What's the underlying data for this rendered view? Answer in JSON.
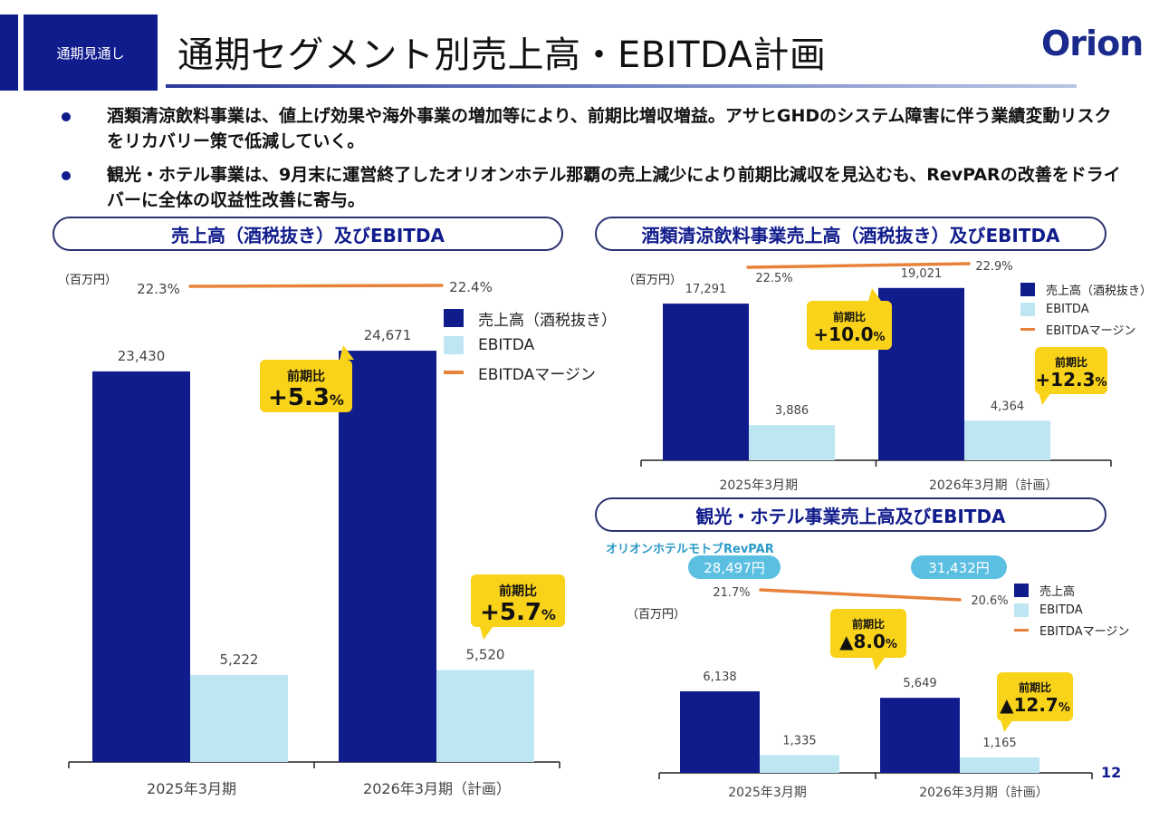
{
  "header": {
    "section_tag": "通期見通し",
    "title": "通期セグメント別売上高・EBITDA計画",
    "logo_text": "Orion"
  },
  "bullets": [
    "酒類清涼飲料事業は、値上げ効果や海外事業の増加等により、前期比増収増益。アサヒGHDのシステム障害に伴う業績変動リスクをリカバリー策で低減していく。",
    "観光・ホテル事業は、9月末に運営終了したオリオンホテル那覇の売上減少により前期比減収を見込むも、RevPARの改善をドライバーに全体の収益性改善に寄与。"
  ],
  "colors": {
    "navy": "#111c8c",
    "light_blue": "#bde6f2",
    "orange": "#e8823a",
    "callout_yellow": "#f9d21a",
    "revpar_blue": "#5bbfe2"
  },
  "page_number": "12",
  "chart_data": [
    {
      "id": "total",
      "type": "bar",
      "title": "売上高（酒税抜き）及びEBITDA",
      "unit_label": "（百万円）",
      "categories": [
        "2025年3月期",
        "2026年3月期（計画）"
      ],
      "series": [
        {
          "name": "売上高（酒税抜き）",
          "values": [
            23430,
            24671
          ],
          "labels": [
            "23,430",
            "24,671"
          ]
        },
        {
          "name": "EBITDA",
          "values": [
            5222,
            5520
          ],
          "labels": [
            "5,222",
            "5,520"
          ]
        }
      ],
      "margin": {
        "name": "EBITDAマージン",
        "values": [
          22.3,
          22.4
        ],
        "labels": [
          "22.3%",
          "22.4%"
        ]
      },
      "legend": [
        "売上高（酒税抜き）",
        "EBITDA",
        "EBITDAマージン"
      ],
      "legend_position": "right",
      "callouts": [
        {
          "label": "前期比",
          "value": "+5.3",
          "unit": "%",
          "target": "売上高"
        },
        {
          "label": "前期比",
          "value": "+5.7",
          "unit": "%",
          "target": "EBITDA"
        }
      ],
      "ylim": [
        0,
        25000
      ]
    },
    {
      "id": "beverage",
      "type": "bar",
      "title": "酒類清涼飲料事業売上高（酒税抜き）及びEBITDA",
      "unit_label": "（百万円）",
      "categories": [
        "2025年3月期",
        "2026年3月期（計画）"
      ],
      "series": [
        {
          "name": "売上高（酒税抜き）",
          "values": [
            17291,
            19021
          ],
          "labels": [
            "17,291",
            "19,021"
          ]
        },
        {
          "name": "EBITDA",
          "values": [
            3886,
            4364
          ],
          "labels": [
            "3,886",
            "4,364"
          ]
        }
      ],
      "margin": {
        "name": "EBITDAマージン",
        "values": [
          22.5,
          22.9
        ],
        "labels": [
          "22.5%",
          "22.9%"
        ]
      },
      "legend": [
        "売上高（酒税抜き）",
        "EBITDA",
        "EBITDAマージン"
      ],
      "legend_position": "right",
      "callouts": [
        {
          "label": "前期比",
          "value": "+10.0",
          "unit": "%",
          "target": "売上高"
        },
        {
          "label": "前期比",
          "value": "+12.3",
          "unit": "%",
          "target": "EBITDA"
        }
      ],
      "ylim": [
        0,
        19500
      ]
    },
    {
      "id": "hotel",
      "type": "bar",
      "title": "観光・ホテル事業売上高及びEBITDA",
      "unit_label": "（百万円）",
      "revpar_label": "オリオンホテルモトブRevPAR",
      "revpar_values": [
        "28,497円",
        "31,432円"
      ],
      "categories": [
        "2025年3月期",
        "2026年3月期（計画）"
      ],
      "series": [
        {
          "name": "売上高",
          "values": [
            6138,
            5649
          ],
          "labels": [
            "6,138",
            "5,649"
          ]
        },
        {
          "name": "EBITDA",
          "values": [
            1335,
            1165
          ],
          "labels": [
            "1,335",
            "1,165"
          ]
        }
      ],
      "margin": {
        "name": "EBITDAマージン",
        "values": [
          21.7,
          20.6
        ],
        "labels": [
          "21.7%",
          "20.6%"
        ]
      },
      "legend": [
        "売上高",
        "EBITDA",
        "EBITDAマージン"
      ],
      "legend_position": "right",
      "callouts": [
        {
          "label": "前期比",
          "value": "▲8.0",
          "unit": "%",
          "target": "売上高"
        },
        {
          "label": "前期比",
          "value": "▲12.7",
          "unit": "%",
          "target": "EBITDA"
        }
      ],
      "ylim": [
        0,
        7500
      ]
    }
  ]
}
